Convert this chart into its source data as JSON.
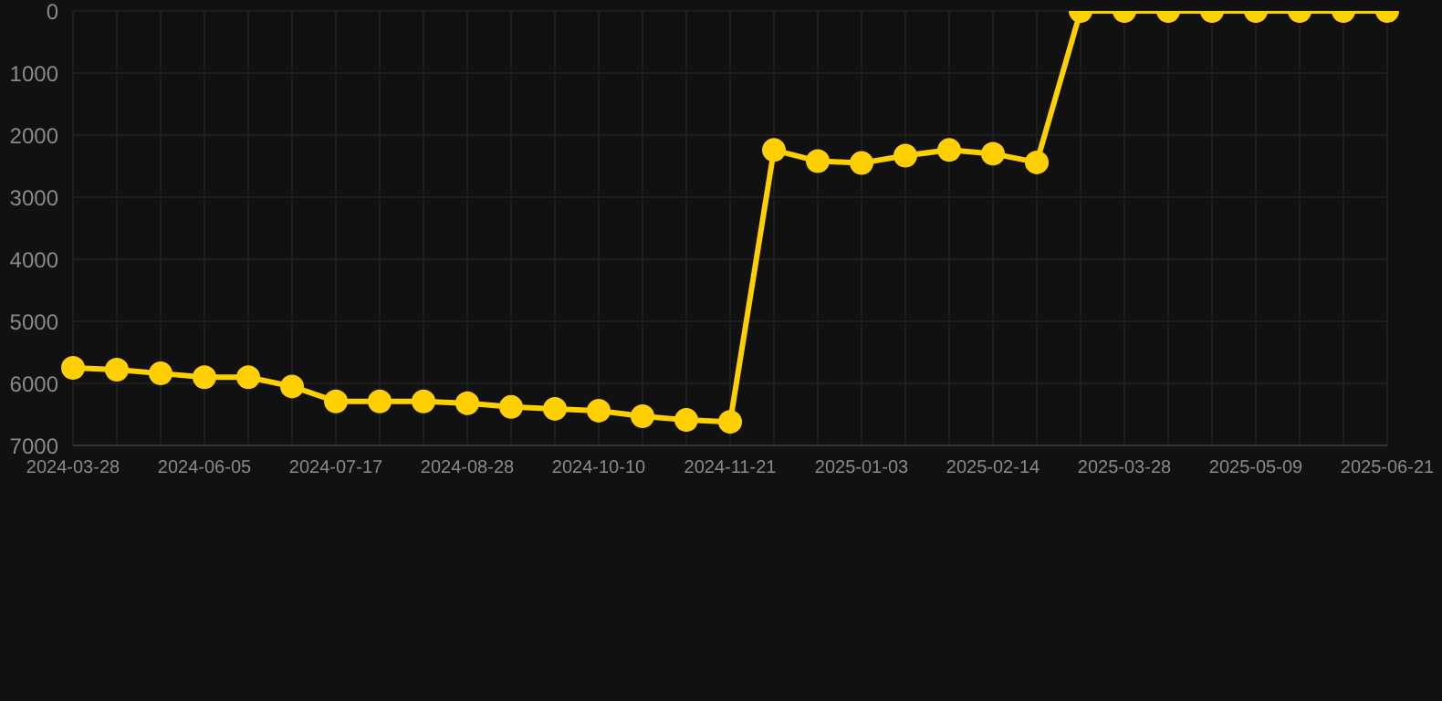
{
  "chart_data": {
    "type": "line",
    "categories": [
      "2024-03-28",
      null,
      null,
      "2024-06-05",
      null,
      null,
      "2024-07-17",
      null,
      null,
      "2024-08-28",
      null,
      null,
      "2024-10-10",
      null,
      null,
      "2024-11-21",
      null,
      null,
      "2025-01-03",
      null,
      null,
      "2025-02-14",
      null,
      null,
      "2025-03-28",
      null,
      null,
      "2025-05-09",
      null,
      null,
      "2025-06-21"
    ],
    "series": [
      {
        "color": "#ffd000",
        "values": [
          5750,
          5780,
          5840,
          5900,
          5900,
          6050,
          6290,
          6290,
          6290,
          6320,
          6380,
          6410,
          6440,
          6530,
          6590,
          6620,
          2240,
          2420,
          2450,
          2330,
          2240,
          2300,
          2440,
          0,
          0,
          0,
          0,
          0,
          0,
          0,
          0
        ]
      }
    ],
    "ylim": [
      7000,
      0
    ],
    "yticks": [
      0,
      1000,
      2000,
      3000,
      4000,
      5000,
      6000,
      7000
    ],
    "grid": true,
    "marker": "circle",
    "line_style": "solid"
  }
}
